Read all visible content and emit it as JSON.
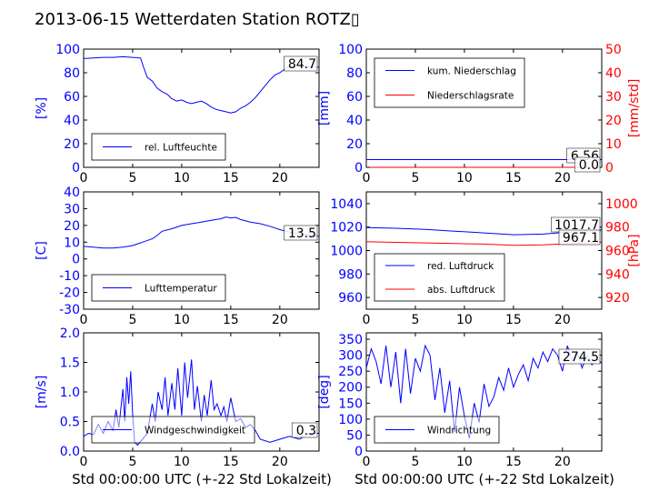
{
  "title": "2013-06-15 Wetterdaten Station ROTZ▯",
  "xlabel": "Std 00:00:00 UTC (+-22 Std Lokalzeit)",
  "colors": {
    "blue": "#0000ff",
    "red": "#ff0000",
    "black": "#000000"
  },
  "chart_data": [
    {
      "type": "line",
      "ylabel": "[%]",
      "xlim": [
        0,
        24
      ],
      "ylim": [
        0,
        100
      ],
      "xticks": [
        0,
        5,
        10,
        15,
        20
      ],
      "yticks": [
        0,
        20,
        40,
        60,
        80,
        100
      ],
      "tick_color": "blue",
      "legend": {
        "placement": "bottom-left",
        "entries": [
          "rel. Luftfeuchte"
        ]
      },
      "annotations": [
        "84.7"
      ],
      "series": [
        {
          "name": "rel. Luftfeuchte",
          "color": "blue",
          "annotation": "84.7",
          "x": [
            0,
            1,
            2,
            3,
            4,
            5,
            5.8,
            6.1,
            6.5,
            7,
            7.5,
            8,
            8.5,
            9,
            9.5,
            10,
            10.5,
            11,
            11.5,
            12,
            12.5,
            13,
            13.5,
            14,
            14.5,
            15,
            15.5,
            16,
            16.5,
            17,
            17.5,
            18,
            18.5,
            19,
            19.5,
            20,
            20.5,
            21,
            21.5,
            22,
            22.5,
            23,
            24
          ],
          "y": [
            92,
            92.5,
            93,
            93,
            93.5,
            93,
            92.5,
            85,
            76,
            73,
            67,
            64,
            62,
            58,
            56,
            57,
            55,
            54,
            55,
            56,
            54,
            51,
            49,
            48,
            47,
            46,
            47,
            50,
            52,
            55,
            59,
            64,
            69,
            74,
            78,
            80,
            83,
            85,
            86,
            86,
            85.5,
            85,
            84.7
          ]
        }
      ]
    },
    {
      "type": "line",
      "ylabel": "[mm]",
      "ylabel_right": "[mm/std]",
      "xlim": [
        0,
        24
      ],
      "ylim": [
        0,
        100
      ],
      "ylim_right": [
        0,
        50
      ],
      "xticks": [
        0,
        5,
        10,
        15,
        20
      ],
      "yticks": [
        0,
        20,
        40,
        60,
        80,
        100
      ],
      "yticks_right": [
        0,
        10,
        20,
        30,
        40,
        50
      ],
      "tick_color": "blue",
      "tick_color_right": "red",
      "legend": {
        "placement": "top-left",
        "entries": [
          "kum. Niederschlag",
          "Niederschlagsrate"
        ]
      },
      "annotations": [
        "6.56",
        "0.0"
      ],
      "series": [
        {
          "name": "kum. Niederschlag",
          "color": "blue",
          "axis": "left",
          "annotation": "6.56",
          "x": [
            0,
            24
          ],
          "y": [
            6.56,
            6.56
          ]
        },
        {
          "name": "Niederschlagsrate",
          "color": "red",
          "axis": "right",
          "annotation": "0.0",
          "x": [
            0,
            24
          ],
          "y": [
            0,
            0
          ]
        }
      ]
    },
    {
      "type": "line",
      "ylabel": "[C]",
      "xlim": [
        0,
        24
      ],
      "ylim": [
        -30,
        40
      ],
      "xticks": [
        0,
        5,
        10,
        15,
        20
      ],
      "yticks": [
        -30,
        -20,
        -10,
        0,
        10,
        20,
        30,
        40
      ],
      "tick_color": "blue",
      "legend": {
        "placement": "bottom-left",
        "entries": [
          "Lufttemperatur"
        ]
      },
      "annotations": [
        "13.5"
      ],
      "series": [
        {
          "name": "Lufttemperatur",
          "color": "blue",
          "annotation": "13.5",
          "x": [
            0,
            1,
            2,
            3,
            4,
            5,
            5.5,
            6,
            7,
            7.5,
            8,
            9,
            10,
            11,
            12,
            13,
            14,
            14.5,
            15,
            15.5,
            16,
            17,
            18,
            19,
            20,
            21,
            22,
            23,
            24
          ],
          "y": [
            7.5,
            7,
            6.5,
            6.5,
            7,
            8,
            9,
            10,
            12,
            14,
            16.5,
            18,
            20,
            21,
            22,
            23,
            24,
            25,
            24.5,
            24.8,
            23.5,
            22,
            21,
            19.5,
            17.5,
            16,
            15,
            14,
            13.5
          ]
        }
      ]
    },
    {
      "type": "line",
      "ylabel_right": "[hPa]",
      "xlim": [
        0,
        24
      ],
      "ylim": [
        950,
        1050
      ],
      "ylim_right": [
        910,
        1010
      ],
      "xticks": [
        0,
        5,
        10,
        15,
        20
      ],
      "yticks": [
        960,
        980,
        1000,
        1020,
        1040
      ],
      "yticks_right": [
        920,
        940,
        960,
        980,
        1000
      ],
      "tick_color": "blue",
      "tick_color_right": "red",
      "legend": {
        "placement": "bottom-left",
        "entries": [
          "red. Luftdruck",
          "abs. Luftdruck"
        ]
      },
      "annotations": [
        "1017.7",
        "967.1"
      ],
      "series": [
        {
          "name": "red. Luftdruck",
          "color": "blue",
          "axis": "left",
          "annotation": "1017.7",
          "x": [
            0,
            3,
            6,
            9,
            12,
            15,
            18,
            21,
            24
          ],
          "y": [
            1019.5,
            1019,
            1018,
            1016.5,
            1015,
            1013.5,
            1014,
            1016,
            1017.7
          ]
        },
        {
          "name": "abs. Luftdruck",
          "color": "red",
          "axis": "right",
          "annotation": "967.1",
          "x": [
            0,
            3,
            6,
            9,
            12,
            15,
            18,
            21,
            24
          ],
          "y": [
            967.5,
            967,
            966.5,
            966,
            965.5,
            964.5,
            964.8,
            966,
            967.1
          ]
        }
      ]
    },
    {
      "type": "line",
      "ylabel": "[m/s]",
      "xlim": [
        0,
        24
      ],
      "ylim": [
        0,
        2.0
      ],
      "xticks": [
        0,
        5,
        10,
        15,
        20
      ],
      "yticks": [
        0.0,
        0.5,
        1.0,
        1.5,
        2.0
      ],
      "tick_color": "blue",
      "legend": {
        "placement": "bottom-left",
        "entries": [
          "Windgeschwindigkeit"
        ]
      },
      "annotations": [
        "0.3"
      ],
      "series": [
        {
          "name": "Windgeschwindigkeit",
          "color": "blue",
          "annotation": "0.3",
          "x": [
            0,
            0.5,
            1,
            1.5,
            2,
            2.5,
            3,
            3.3,
            3.6,
            4,
            4.2,
            4.4,
            4.6,
            4.8,
            5,
            5.2,
            5.5,
            6,
            6.5,
            7,
            7.3,
            7.6,
            8,
            8.3,
            8.6,
            9,
            9.3,
            9.6,
            10,
            10.3,
            10.6,
            11,
            11.3,
            11.6,
            12,
            12.3,
            12.6,
            13,
            13.3,
            13.6,
            14,
            14.3,
            14.6,
            15,
            15.5,
            16,
            16.5,
            17,
            17.5,
            18,
            19,
            20,
            21,
            22,
            23,
            24
          ],
          "y": [
            0.25,
            0.3,
            0.28,
            0.45,
            0.3,
            0.5,
            0.35,
            0.7,
            0.4,
            1.05,
            0.5,
            1.25,
            0.8,
            1.35,
            0.6,
            0.15,
            0.1,
            0.2,
            0.3,
            0.8,
            0.5,
            1.0,
            0.7,
            1.25,
            0.6,
            1.15,
            0.7,
            1.4,
            0.6,
            1.5,
            0.9,
            1.55,
            0.7,
            1.1,
            0.5,
            0.95,
            0.6,
            1.2,
            0.7,
            0.8,
            0.6,
            0.75,
            0.5,
            0.9,
            0.5,
            0.55,
            0.4,
            0.45,
            0.35,
            0.2,
            0.15,
            0.2,
            0.25,
            0.2,
            0.3,
            0.3
          ]
        }
      ]
    },
    {
      "type": "line",
      "ylabel": "[deg]",
      "xlim": [
        0,
        24
      ],
      "ylim": [
        0,
        370
      ],
      "xticks": [
        0,
        5,
        10,
        15,
        20
      ],
      "yticks": [
        0,
        50,
        100,
        150,
        200,
        250,
        300,
        350
      ],
      "tick_color": "blue",
      "legend": {
        "placement": "bottom-left",
        "entries": [
          "Windrichtung"
        ]
      },
      "annotations": [
        "274.5"
      ],
      "series": [
        {
          "name": "Windrichtung",
          "color": "blue",
          "annotation": "274.5",
          "x": [
            0,
            0.5,
            1,
            1.5,
            2,
            2.5,
            3,
            3.5,
            4,
            4.5,
            5,
            5.5,
            6,
            6.5,
            7,
            7.5,
            8,
            8.5,
            9,
            9.5,
            10,
            10.5,
            11,
            11.5,
            12,
            12.5,
            13,
            13.5,
            14,
            14.5,
            15,
            15.5,
            16,
            16.5,
            17,
            17.5,
            18,
            18.5,
            19,
            19.5,
            20,
            20.5,
            21,
            21.5,
            22,
            22.5,
            23,
            23.5,
            24
          ],
          "y": [
            260,
            320,
            280,
            210,
            330,
            200,
            310,
            150,
            320,
            180,
            290,
            250,
            330,
            300,
            160,
            260,
            120,
            220,
            60,
            200,
            110,
            40,
            150,
            90,
            210,
            140,
            170,
            230,
            190,
            260,
            200,
            240,
            270,
            220,
            290,
            260,
            310,
            280,
            320,
            300,
            250,
            330,
            280,
            310,
            260,
            300,
            270,
            290,
            274.5
          ]
        }
      ]
    }
  ]
}
